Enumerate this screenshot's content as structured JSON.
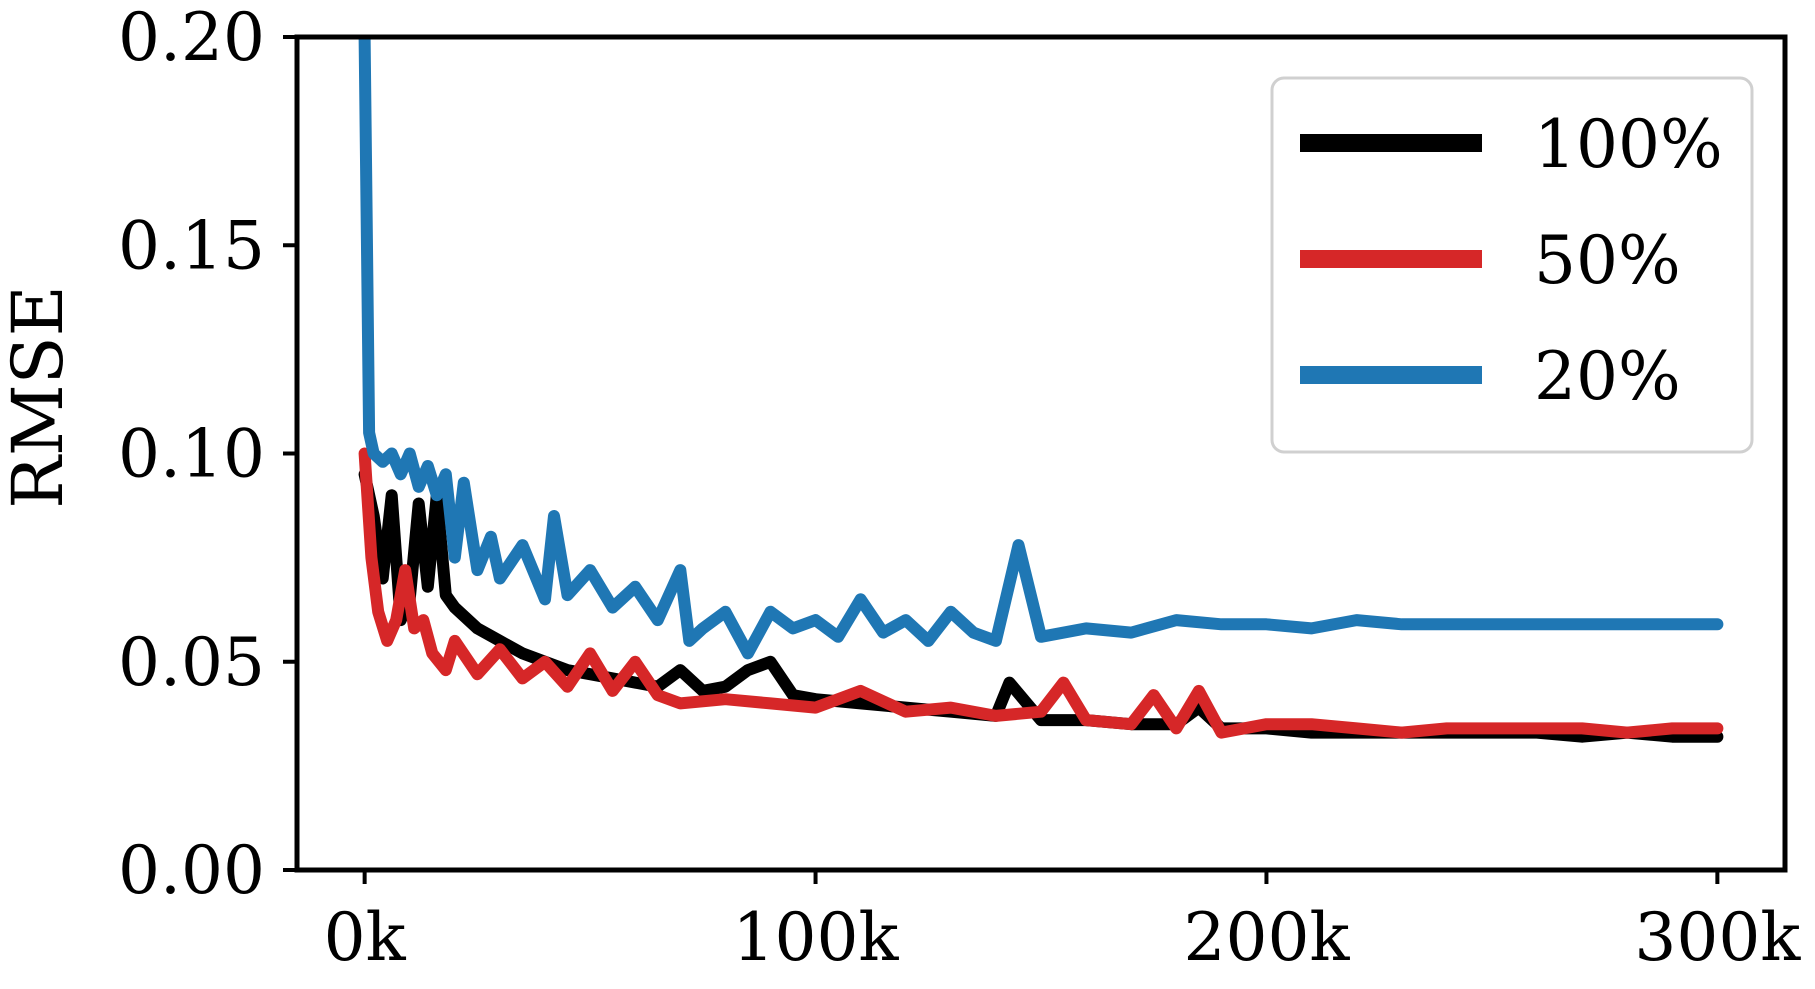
{
  "chart_data": {
    "type": "line",
    "title": "",
    "xlabel": "",
    "ylabel": "RMSE",
    "xlim": [
      -15000,
      315000
    ],
    "ylim": [
      0,
      0.2
    ],
    "x_ticks": [
      0,
      100000,
      200000,
      300000
    ],
    "x_tick_labels": [
      "0k",
      "100k",
      "200k",
      "300k"
    ],
    "y_ticks": [
      0,
      0.05,
      0.1,
      0.15,
      0.2
    ],
    "y_tick_labels": [
      "0.00",
      "0.05",
      "0.10",
      "0.15",
      "0.20"
    ],
    "grid": false,
    "legend_position": "top-right",
    "series": [
      {
        "name": "100%",
        "color": "#000000",
        "x": [
          0,
          2000,
          4000,
          6000,
          8000,
          10000,
          12000,
          14000,
          16000,
          18000,
          20000,
          25000,
          30000,
          35000,
          40000,
          45000,
          50000,
          55000,
          60000,
          65000,
          70000,
          75000,
          80000,
          85000,
          90000,
          95000,
          100000,
          110000,
          120000,
          130000,
          140000,
          143000,
          150000,
          160000,
          170000,
          180000,
          185000,
          190000,
          200000,
          210000,
          220000,
          230000,
          240000,
          250000,
          260000,
          270000,
          280000,
          290000,
          300000
        ],
        "y": [
          0.095,
          0.085,
          0.07,
          0.09,
          0.06,
          0.065,
          0.088,
          0.068,
          0.09,
          0.066,
          0.063,
          0.058,
          0.055,
          0.052,
          0.05,
          0.048,
          0.047,
          0.046,
          0.045,
          0.044,
          0.048,
          0.043,
          0.044,
          0.048,
          0.05,
          0.042,
          0.041,
          0.04,
          0.039,
          0.038,
          0.037,
          0.045,
          0.036,
          0.036,
          0.035,
          0.035,
          0.039,
          0.034,
          0.034,
          0.033,
          0.033,
          0.033,
          0.033,
          0.033,
          0.033,
          0.032,
          0.033,
          0.032,
          0.032
        ]
      },
      {
        "name": "50%",
        "color": "#d62728",
        "x": [
          0,
          1500,
          3000,
          5000,
          7000,
          9000,
          11000,
          13000,
          15000,
          18000,
          20000,
          25000,
          30000,
          35000,
          40000,
          45000,
          50000,
          55000,
          60000,
          65000,
          70000,
          80000,
          90000,
          100000,
          110000,
          120000,
          130000,
          140000,
          150000,
          155000,
          160000,
          170000,
          175000,
          180000,
          185000,
          190000,
          200000,
          210000,
          220000,
          230000,
          240000,
          250000,
          260000,
          270000,
          280000,
          290000,
          300000
        ],
        "y": [
          0.1,
          0.075,
          0.062,
          0.055,
          0.06,
          0.072,
          0.058,
          0.06,
          0.052,
          0.048,
          0.055,
          0.047,
          0.053,
          0.046,
          0.05,
          0.044,
          0.052,
          0.043,
          0.05,
          0.042,
          0.04,
          0.041,
          0.04,
          0.039,
          0.043,
          0.038,
          0.039,
          0.037,
          0.038,
          0.045,
          0.036,
          0.035,
          0.042,
          0.034,
          0.043,
          0.033,
          0.035,
          0.035,
          0.034,
          0.033,
          0.034,
          0.034,
          0.034,
          0.034,
          0.033,
          0.034,
          0.034
        ]
      },
      {
        "name": "20%",
        "color": "#1f77b4",
        "x": [
          0,
          1000,
          2000,
          4000,
          6000,
          8000,
          10000,
          12000,
          14000,
          16000,
          18000,
          20000,
          22000,
          25000,
          28000,
          30000,
          35000,
          40000,
          42000,
          45000,
          50000,
          55000,
          60000,
          65000,
          70000,
          72000,
          75000,
          80000,
          85000,
          90000,
          95000,
          100000,
          105000,
          110000,
          115000,
          120000,
          125000,
          130000,
          135000,
          140000,
          145000,
          150000,
          160000,
          170000,
          180000,
          190000,
          200000,
          210000,
          220000,
          230000,
          240000,
          250000,
          260000,
          270000,
          280000,
          290000,
          300000
        ],
        "y": [
          0.2,
          0.105,
          0.1,
          0.098,
          0.1,
          0.095,
          0.1,
          0.092,
          0.097,
          0.09,
          0.095,
          0.075,
          0.093,
          0.072,
          0.08,
          0.07,
          0.078,
          0.065,
          0.085,
          0.066,
          0.072,
          0.063,
          0.068,
          0.06,
          0.072,
          0.055,
          0.058,
          0.062,
          0.052,
          0.062,
          0.058,
          0.06,
          0.056,
          0.065,
          0.057,
          0.06,
          0.055,
          0.062,
          0.057,
          0.055,
          0.078,
          0.056,
          0.058,
          0.057,
          0.06,
          0.059,
          0.059,
          0.058,
          0.06,
          0.059,
          0.059,
          0.059,
          0.059,
          0.059,
          0.059,
          0.059,
          0.059
        ]
      }
    ]
  }
}
